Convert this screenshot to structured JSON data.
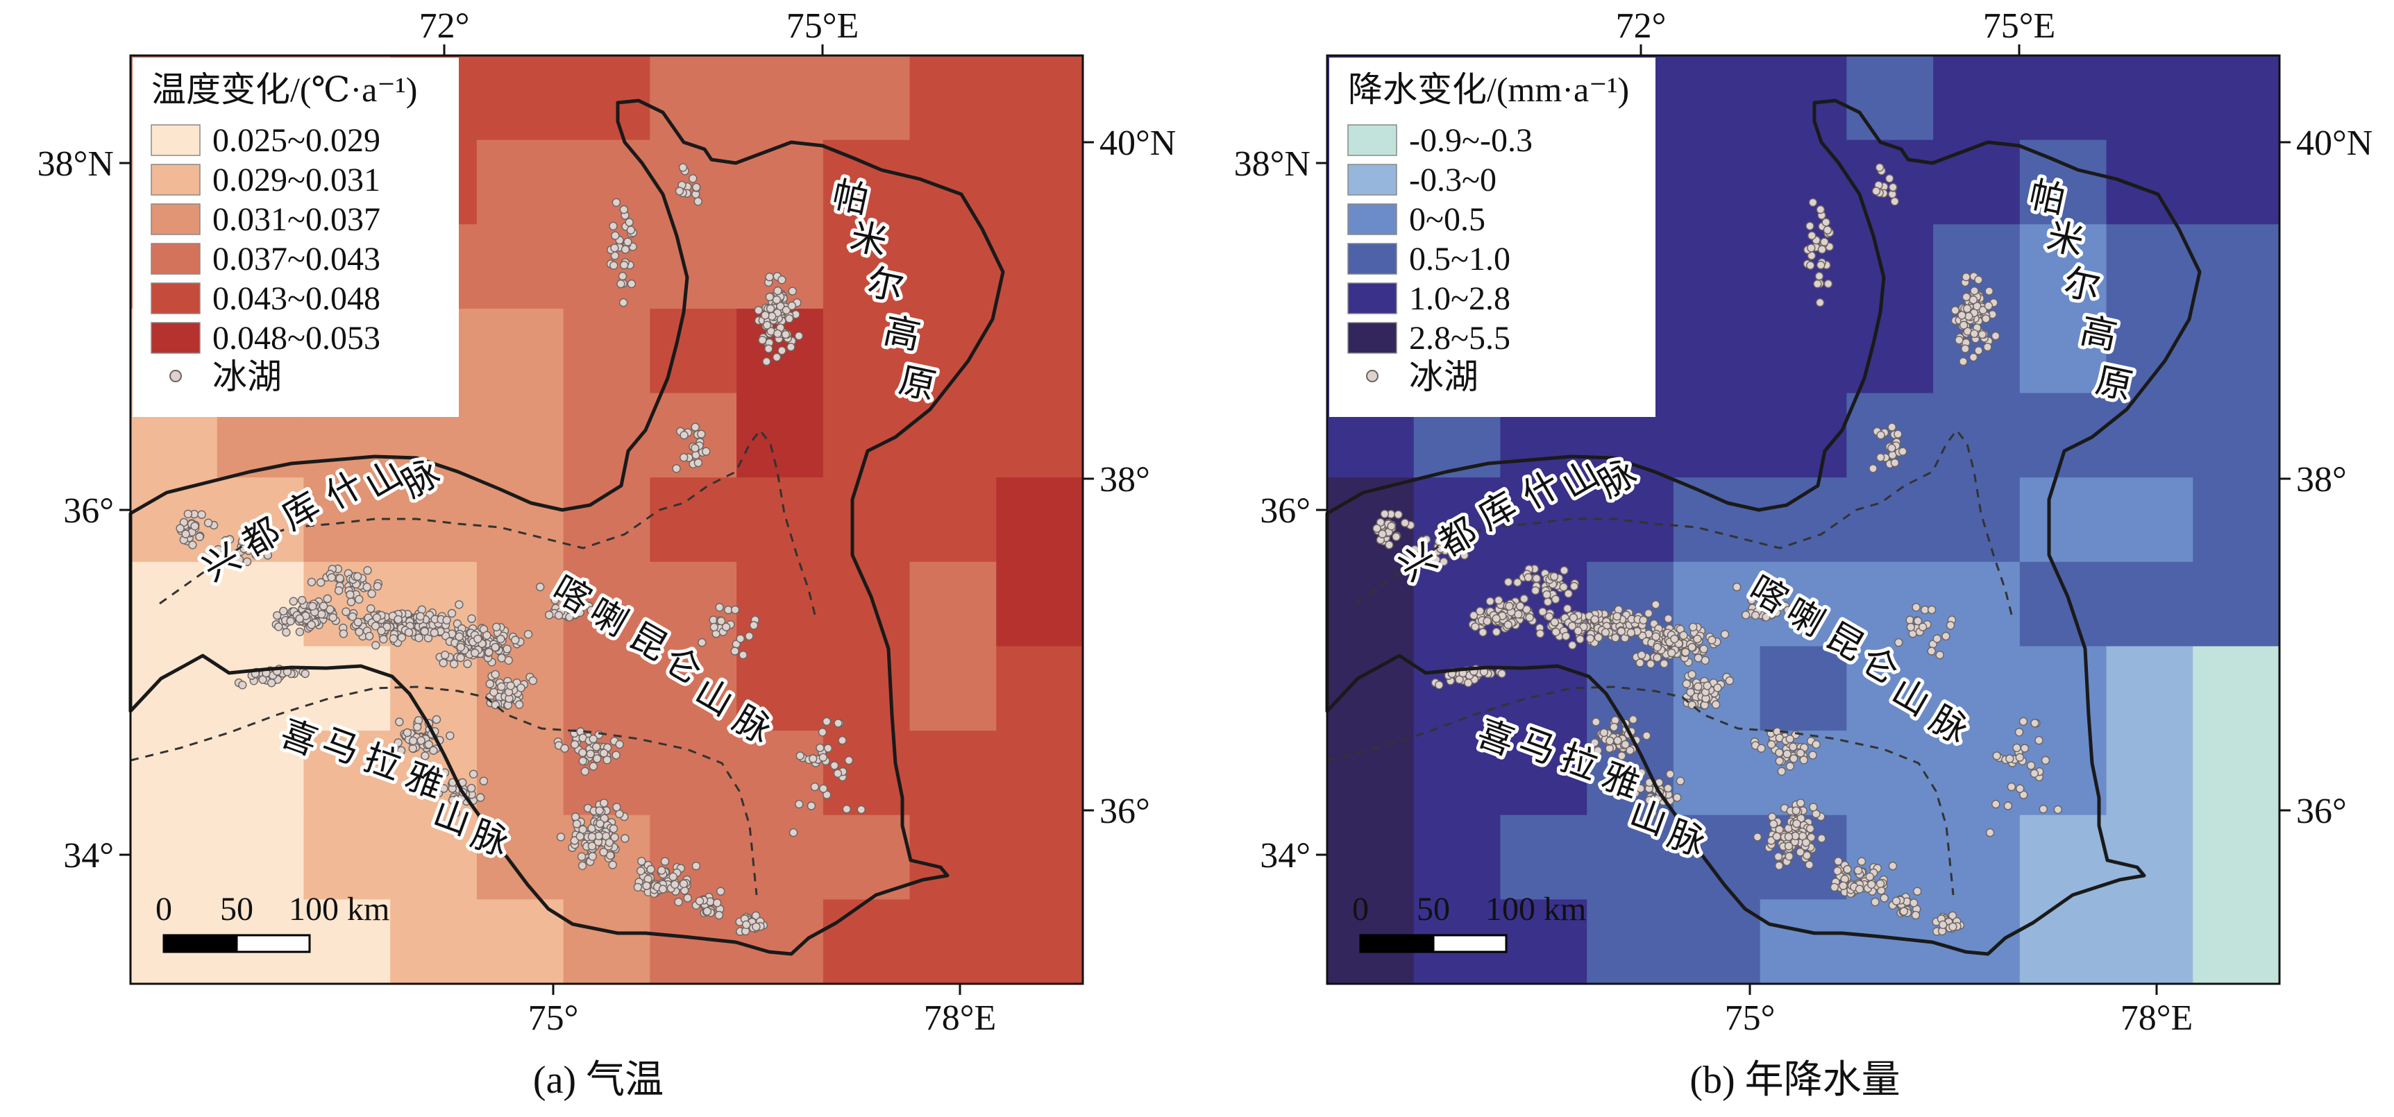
{
  "panels": [
    {
      "id": "a",
      "caption": "(a) 气温",
      "legend_title": "温度变化/(℃·a⁻¹)",
      "classes": [
        {
          "label": "0.025~0.029",
          "color": "#fde6cf"
        },
        {
          "label": "0.029~0.031",
          "color": "#f1b996"
        },
        {
          "label": "0.031~0.037",
          "color": "#e19574"
        },
        {
          "label": "0.037~0.043",
          "color": "#d4735c"
        },
        {
          "label": "0.043~0.048",
          "color": "#c54c3c"
        },
        {
          "label": "0.048~0.053",
          "color": "#b5322e"
        }
      ],
      "grid": [
        [
          3,
          3,
          3,
          4,
          4,
          4,
          3,
          3,
          3,
          4,
          4
        ],
        [
          3,
          3,
          3,
          4,
          3,
          3,
          3,
          3,
          4,
          4,
          4
        ],
        [
          3,
          3,
          3,
          3,
          3,
          3,
          3,
          3,
          4,
          4,
          4
        ],
        [
          1,
          3,
          3,
          2,
          2,
          3,
          4,
          5,
          4,
          4,
          4
        ],
        [
          1,
          2,
          2,
          2,
          2,
          3,
          3,
          5,
          4,
          4,
          4
        ],
        [
          1,
          1,
          2,
          2,
          2,
          3,
          4,
          4,
          4,
          4,
          5
        ],
        [
          0,
          0,
          1,
          1,
          2,
          3,
          3,
          4,
          4,
          3,
          5
        ],
        [
          0,
          0,
          0,
          1,
          2,
          3,
          3,
          4,
          4,
          3,
          4
        ],
        [
          0,
          0,
          1,
          1,
          2,
          3,
          3,
          3,
          4,
          4,
          4
        ],
        [
          0,
          0,
          1,
          1,
          2,
          2,
          3,
          3,
          3,
          4,
          4
        ],
        [
          0,
          0,
          0,
          1,
          1,
          2,
          3,
          3,
          4,
          4,
          4
        ]
      ]
    },
    {
      "id": "b",
      "caption": "(b) 年降水量",
      "legend_title": "降水变化/(mm·a⁻¹)",
      "classes": [
        {
          "label": "-0.9~-0.3",
          "color": "#c2e3db"
        },
        {
          "label": "-0.3~0",
          "color": "#96b6dc"
        },
        {
          "label": "0~0.5",
          "color": "#6b8cc8"
        },
        {
          "label": "0.5~1.0",
          "color": "#4e62a9"
        },
        {
          "label": "1.0~2.8",
          "color": "#3a318a"
        },
        {
          "label": "2.8~5.5",
          "color": "#33265d"
        }
      ],
      "grid": [
        [
          4,
          4,
          4,
          4,
          4,
          4,
          3,
          4,
          4,
          4,
          4
        ],
        [
          4,
          4,
          4,
          4,
          4,
          4,
          4,
          4,
          3,
          4,
          4
        ],
        [
          4,
          4,
          4,
          4,
          4,
          4,
          4,
          3,
          2,
          3,
          3
        ],
        [
          4,
          4,
          4,
          4,
          4,
          4,
          4,
          3,
          2,
          3,
          3
        ],
        [
          4,
          3,
          4,
          4,
          4,
          4,
          3,
          3,
          3,
          3,
          3
        ],
        [
          5,
          4,
          4,
          4,
          3,
          3,
          3,
          3,
          2,
          2,
          3
        ],
        [
          5,
          4,
          4,
          3,
          2,
          2,
          2,
          2,
          3,
          3,
          3
        ],
        [
          5,
          4,
          4,
          3,
          2,
          3,
          2,
          2,
          2,
          1,
          0
        ],
        [
          5,
          4,
          4,
          3,
          2,
          2,
          2,
          2,
          2,
          1,
          0
        ],
        [
          5,
          4,
          3,
          3,
          3,
          3,
          2,
          2,
          1,
          1,
          0
        ],
        [
          5,
          4,
          4,
          3,
          3,
          2,
          2,
          2,
          1,
          1,
          0
        ]
      ]
    }
  ],
  "glacial_lake_label": "冰湖",
  "top_ticks": [
    "72°",
    "75°E"
  ],
  "bottom_ticks": [
    "75°",
    "78°E"
  ],
  "left_ticks": [
    "38°N",
    "36°",
    "34°"
  ],
  "right_ticks": [
    "40°N",
    "38°",
    "36°"
  ],
  "ranges": {
    "pamir": "帕米尔高原",
    "hindukush": "兴都库什山脉",
    "karakoram": "喀喇昆仑山脉",
    "himalaya": "喜马拉雅山脉"
  },
  "scalebar": {
    "labels": [
      "0",
      "50",
      "100 km"
    ]
  }
}
